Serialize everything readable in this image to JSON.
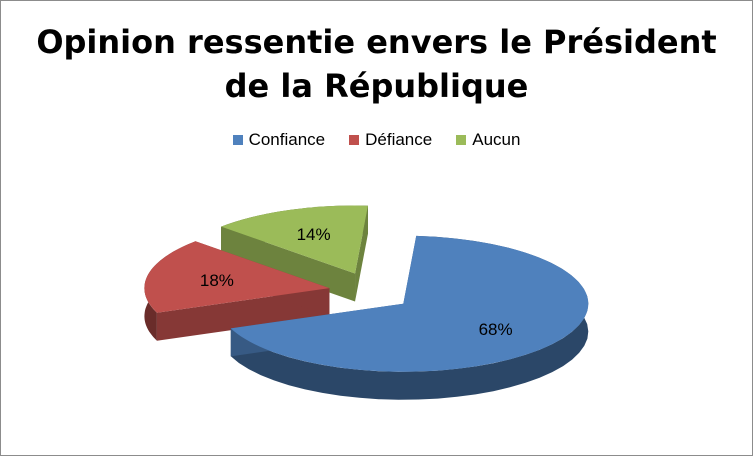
{
  "chart_data": {
    "type": "pie",
    "title_lines": [
      "Opinion ressentie envers le Président",
      "de la République"
    ],
    "categories": [
      "Confiance",
      "Défiance",
      "Aucun"
    ],
    "values": [
      68,
      18,
      14
    ],
    "labels": [
      "68%",
      "18%",
      "14%"
    ],
    "colors": [
      "#4f81bd",
      "#c0504d",
      "#9bbb59"
    ],
    "exploded": true,
    "three_d": true,
    "legend_position": "top"
  }
}
